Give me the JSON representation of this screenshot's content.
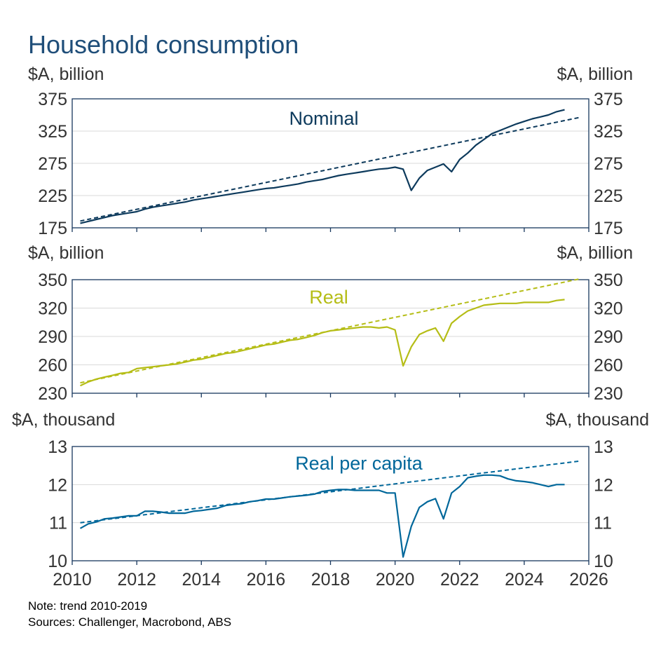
{
  "title": "Household consumption",
  "notes": {
    "note": "Note: trend 2010-2019",
    "sources": "Sources: Challenger, Macrobond, ABS"
  },
  "colors": {
    "title": "#1f4e79",
    "axis": "#17375e",
    "text": "#333333",
    "grid": "#d9d9d9",
    "nominal": "#0d3a5c",
    "real": "#b5bd16",
    "per_capita": "#00679a"
  },
  "chart_data": [
    {
      "type": "line",
      "panel": "nominal",
      "label": "Nominal",
      "ylabel_left": "$A, billion",
      "ylabel_right": "$A, billion",
      "ylim": [
        175,
        375
      ],
      "yticks": [
        "175",
        "225",
        "275",
        "325",
        "375"
      ],
      "xlim": [
        2010,
        2026
      ],
      "series": [
        {
          "name": "Nominal",
          "style": "solid",
          "x": [
            2010.25,
            2010.5,
            2010.75,
            2011,
            2011.25,
            2011.5,
            2011.75,
            2012,
            2012.25,
            2012.5,
            2012.75,
            2013,
            2013.25,
            2013.5,
            2013.75,
            2014,
            2014.25,
            2014.5,
            2014.75,
            2015,
            2015.25,
            2015.5,
            2015.75,
            2016,
            2016.25,
            2016.5,
            2016.75,
            2017,
            2017.25,
            2017.5,
            2017.75,
            2018,
            2018.25,
            2018.5,
            2018.75,
            2019,
            2019.25,
            2019.5,
            2019.75,
            2020,
            2020.25,
            2020.5,
            2020.75,
            2021,
            2021.25,
            2021.5,
            2021.75,
            2022,
            2022.25,
            2022.5,
            2022.75,
            2023,
            2023.25,
            2023.5,
            2023.75,
            2024,
            2024.25,
            2024.5,
            2024.75,
            2025,
            2025.25
          ],
          "values": [
            182,
            185,
            188,
            191,
            194,
            196,
            198,
            200,
            204,
            207,
            209,
            211,
            213,
            215,
            218,
            220,
            222,
            224,
            226,
            228,
            230,
            232,
            234,
            236,
            237,
            239,
            241,
            243,
            246,
            248,
            250,
            253,
            256,
            258,
            260,
            262,
            264,
            266,
            267,
            269,
            266,
            233,
            252,
            264,
            269,
            274,
            262,
            281,
            291,
            303,
            312,
            321,
            326,
            331,
            336,
            340,
            344,
            347,
            350,
            355,
            358
          ]
        },
        {
          "name": "Trend 2010-2019",
          "style": "dashed",
          "x": [
            2010.25,
            2025.75
          ],
          "values": [
            185.5,
            346.5
          ]
        }
      ]
    },
    {
      "type": "line",
      "panel": "real",
      "label": "Real",
      "ylabel_left": "$A, billion",
      "ylabel_right": "$A, billion",
      "ylim": [
        230,
        350
      ],
      "yticks": [
        "230",
        "260",
        "290",
        "320",
        "350"
      ],
      "xlim": [
        2010,
        2026
      ],
      "series": [
        {
          "name": "Real",
          "style": "solid",
          "x": [
            2010.25,
            2010.5,
            2010.75,
            2011,
            2011.25,
            2011.5,
            2011.75,
            2012,
            2012.25,
            2012.5,
            2012.75,
            2013,
            2013.25,
            2013.5,
            2013.75,
            2014,
            2014.25,
            2014.5,
            2014.75,
            2015,
            2015.25,
            2015.5,
            2015.75,
            2016,
            2016.25,
            2016.5,
            2016.75,
            2017,
            2017.25,
            2017.5,
            2017.75,
            2018,
            2018.25,
            2018.5,
            2018.75,
            2019,
            2019.25,
            2019.5,
            2019.75,
            2020,
            2020.25,
            2020.5,
            2020.75,
            2021,
            2021.25,
            2021.5,
            2021.75,
            2022,
            2022.25,
            2022.5,
            2022.75,
            2023,
            2023.25,
            2023.5,
            2023.75,
            2024,
            2024.25,
            2024.5,
            2024.75,
            2025,
            2025.25
          ],
          "values": [
            238,
            242,
            245,
            247,
            249,
            251,
            252,
            256,
            257,
            258,
            259,
            260,
            261,
            263,
            265,
            266,
            268,
            270,
            272,
            273,
            275,
            277,
            279,
            281,
            282,
            284,
            286,
            287,
            289,
            291,
            294,
            296,
            297,
            298,
            299,
            300,
            300,
            299,
            300,
            297,
            259,
            279,
            292,
            296,
            299,
            285,
            304,
            311,
            317,
            320,
            323,
            324,
            325,
            325,
            325,
            326,
            326,
            326,
            326,
            328,
            329
          ]
        },
        {
          "name": "Trend 2010-2019",
          "style": "dashed",
          "x": [
            2010.25,
            2025.75
          ],
          "values": [
            241,
            351
          ]
        }
      ]
    },
    {
      "type": "line",
      "panel": "per_capita",
      "label": "Real per capita",
      "ylabel_left": "$A, thousand",
      "ylabel_right": "$A, thousand",
      "ylim": [
        10,
        13
      ],
      "yticks": [
        "10",
        "11",
        "12",
        "13"
      ],
      "xlim": [
        2010,
        2026
      ],
      "xticks": [
        "2010",
        "2012",
        "2014",
        "2016",
        "2018",
        "2020",
        "2022",
        "2024",
        "2026"
      ],
      "series": [
        {
          "name": "Real per capita",
          "style": "solid",
          "x": [
            2010.25,
            2010.5,
            2010.75,
            2011,
            2011.25,
            2011.5,
            2011.75,
            2012,
            2012.25,
            2012.5,
            2012.75,
            2013,
            2013.25,
            2013.5,
            2013.75,
            2014,
            2014.25,
            2014.5,
            2014.75,
            2015,
            2015.25,
            2015.5,
            2015.75,
            2016,
            2016.25,
            2016.5,
            2016.75,
            2017,
            2017.25,
            2017.5,
            2017.75,
            2018,
            2018.25,
            2018.5,
            2018.75,
            2019,
            2019.25,
            2019.5,
            2019.75,
            2020,
            2020.25,
            2020.5,
            2020.75,
            2021,
            2021.25,
            2021.5,
            2021.75,
            2022,
            2022.25,
            2022.5,
            2022.75,
            2023,
            2023.25,
            2023.5,
            2023.75,
            2024,
            2024.25,
            2024.5,
            2024.75,
            2025,
            2025.25
          ],
          "values": [
            10.85,
            10.97,
            11.02,
            11.1,
            11.12,
            11.15,
            11.18,
            11.18,
            11.3,
            11.3,
            11.28,
            11.25,
            11.25,
            11.25,
            11.3,
            11.32,
            11.35,
            11.38,
            11.45,
            11.48,
            11.5,
            11.55,
            11.58,
            11.62,
            11.62,
            11.65,
            11.68,
            11.7,
            11.72,
            11.75,
            11.82,
            11.85,
            11.87,
            11.87,
            11.85,
            11.85,
            11.85,
            11.85,
            11.78,
            11.78,
            10.1,
            10.9,
            11.4,
            11.55,
            11.63,
            11.1,
            11.78,
            11.95,
            12.18,
            12.22,
            12.25,
            12.25,
            12.23,
            12.15,
            12.1,
            12.08,
            12.05,
            12.0,
            11.95,
            12.0,
            12.0
          ]
        },
        {
          "name": "Trend 2010-2019",
          "style": "dashed",
          "x": [
            2010.25,
            2025.75
          ],
          "values": [
            11.0,
            12.62
          ]
        }
      ]
    }
  ]
}
